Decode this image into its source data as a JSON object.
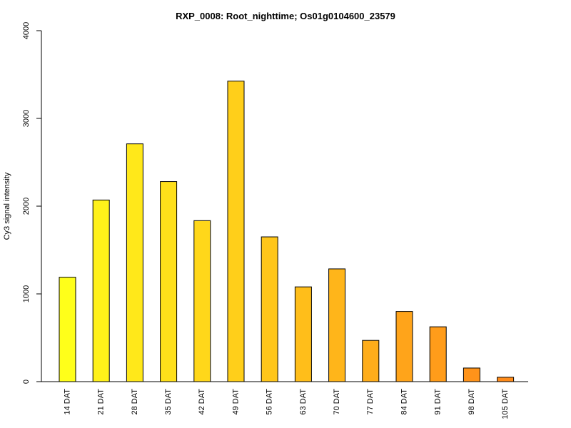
{
  "chart_data": {
    "type": "bar",
    "title": "RXP_0008: Root_nighttime; Os01g0104600_23579",
    "xlabel": "",
    "ylabel": "Cy3 signal intensity",
    "ylim": [
      0,
      4000
    ],
    "yticks": [
      "0",
      "1000",
      "2000",
      "3000",
      "4000"
    ],
    "grid": false,
    "categories": [
      "14 DAT",
      "21 DAT",
      "28 DAT",
      "35 DAT",
      "42 DAT",
      "49 DAT",
      "56 DAT",
      "63 DAT",
      "70 DAT",
      "77 DAT",
      "84 DAT",
      "91 DAT",
      "98 DAT",
      "105 DAT"
    ],
    "values": [
      1190,
      2070,
      2710,
      2280,
      1835,
      3425,
      1650,
      1080,
      1285,
      470,
      800,
      625,
      155,
      50
    ],
    "colors": [
      "#ffff1a",
      "#fff11a",
      "#ffe81a",
      "#ffe01a",
      "#ffd71a",
      "#ffcf1a",
      "#ffc61a",
      "#ffbe1a",
      "#ffb51a",
      "#ffad1a",
      "#ffa41a",
      "#ff9c1a",
      "#ff931a",
      "#ff8b1a"
    ]
  }
}
